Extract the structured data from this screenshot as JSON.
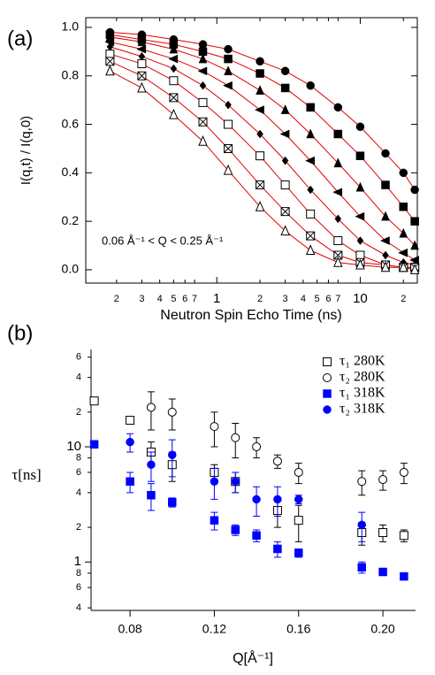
{
  "chart_data": [
    {
      "type": "line",
      "label": "(a)",
      "xlabel": "Neutron Spin Echo Time (ns)",
      "ylabel": "I(q,t) / I(q,0)",
      "annotation": "0.06 Å⁻¹ < Q < 0.25 Å⁻¹",
      "xscale": "log",
      "box": true,
      "xlim": [
        0.122,
        25
      ],
      "ylim": [
        -0.055,
        1.04
      ],
      "xticks": [
        {
          "value": 0.2,
          "label": "2"
        },
        {
          "value": 0.3,
          "label": "3"
        },
        {
          "value": 0.4,
          "label": "4"
        },
        {
          "value": 0.5,
          "label": "5"
        },
        {
          "value": 0.6,
          "label": "6"
        },
        {
          "value": 0.7,
          "label": "7"
        },
        1,
        {
          "value": 2,
          "label": "2"
        },
        {
          "value": 3,
          "label": "3"
        },
        {
          "value": 4,
          "label": "4"
        },
        {
          "value": 5,
          "label": "5"
        },
        {
          "value": 6,
          "label": "6"
        },
        {
          "value": 7,
          "label": "7"
        },
        10,
        {
          "value": 20,
          "label": "2"
        }
      ],
      "yticks": [
        {
          "value": 0,
          "label": "0.0"
        },
        0.2,
        0.4,
        0.6,
        0.8,
        {
          "value": 1,
          "label": "1.0"
        }
      ],
      "x": [
        0.18,
        0.3,
        0.5,
        0.8,
        1.2,
        2,
        3,
        4.5,
        7,
        10,
        15,
        20,
        24
      ],
      "series": [
        {
          "marker": "circle",
          "color": "#000000",
          "line_color": "#e00000",
          "values": [
            0.98,
            0.97,
            0.95,
            0.93,
            0.91,
            0.86,
            0.82,
            0.76,
            0.67,
            0.59,
            0.48,
            0.4,
            0.33
          ]
        },
        {
          "marker": "square",
          "color": "#000000",
          "line_color": "#e00000",
          "values": [
            0.97,
            0.95,
            0.93,
            0.9,
            0.87,
            0.81,
            0.75,
            0.67,
            0.56,
            0.47,
            0.35,
            0.26,
            0.2
          ]
        },
        {
          "marker": "triangle",
          "color": "#000000",
          "line_color": "#e00000",
          "values": [
            0.96,
            0.94,
            0.91,
            0.87,
            0.82,
            0.74,
            0.66,
            0.56,
            0.44,
            0.34,
            0.22,
            0.15,
            0.1
          ]
        },
        {
          "marker": "triangle-left",
          "color": "#000000",
          "line_color": "#e00000",
          "values": [
            0.94,
            0.91,
            0.87,
            0.82,
            0.76,
            0.66,
            0.56,
            0.45,
            0.32,
            0.22,
            0.12,
            0.07,
            0.04
          ]
        },
        {
          "marker": "diamond",
          "color": "#000000",
          "line_color": "#e00000",
          "values": [
            0.92,
            0.88,
            0.83,
            0.76,
            0.68,
            0.56,
            0.45,
            0.33,
            0.21,
            0.12,
            0.06,
            0.03,
            0.02
          ]
        },
        {
          "marker": "square-open",
          "color": "#000000",
          "line_color": "#e00000",
          "values": [
            0.89,
            0.85,
            0.78,
            0.69,
            0.6,
            0.47,
            0.35,
            0.23,
            0.12,
            0.06,
            0.02,
            0.01,
            0.01
          ]
        },
        {
          "marker": "cross",
          "color": "#000000",
          "line_color": "#e00000",
          "values": [
            0.86,
            0.8,
            0.71,
            0.61,
            0.5,
            0.35,
            0.24,
            0.14,
            0.06,
            0.03,
            0.02,
            0.01,
            0.01
          ]
        },
        {
          "marker": "triangle-open",
          "color": "#000000",
          "line_color": "#e00000",
          "values": [
            0.82,
            0.75,
            0.64,
            0.53,
            0.41,
            0.26,
            0.16,
            0.08,
            0.03,
            0.02,
            0.01,
            0.01,
            0
          ]
        }
      ]
    },
    {
      "type": "scatter",
      "label": "(b)",
      "xlabel": "Q[Å⁻¹]",
      "ylabel": "τ[ns]",
      "yscale": "log",
      "box": false,
      "legend": "upper right",
      "xlim": [
        0.0615,
        0.2155
      ],
      "ylim": [
        0.38,
        70
      ],
      "xticks": [
        0.08,
        0.12,
        0.16,
        {
          "value": 0.2,
          "label": "0.20"
        }
      ],
      "yticks": [
        {
          "value": 0.4,
          "label": "4"
        },
        {
          "value": 0.6,
          "label": "6"
        },
        {
          "value": 0.8,
          "label": "8"
        },
        1,
        {
          "value": 2,
          "label": "2"
        },
        {
          "value": 4,
          "label": "4"
        },
        {
          "value": 6,
          "label": "6"
        },
        {
          "value": 8,
          "label": "8"
        },
        10,
        {
          "value": 20,
          "label": "2"
        },
        {
          "value": 40,
          "label": "4"
        },
        {
          "value": 60,
          "label": "6"
        }
      ],
      "series": [
        {
          "name": "τ₁  280K",
          "marker": "square-open",
          "color": "#000000",
          "x": [
            0.063,
            0.08,
            0.09,
            0.1,
            0.12,
            0.13,
            0.15,
            0.16,
            0.19,
            0.2,
            0.21
          ],
          "values": [
            25,
            17,
            9,
            7,
            6,
            5,
            2.8,
            2.3,
            1.8,
            1.8,
            1.7
          ],
          "errors": [
            null,
            null,
            2,
            2,
            1,
            1,
            0.8,
            0.8,
            0.4,
            0.3,
            0.2
          ]
        },
        {
          "name": "τ₂  280K",
          "marker": "circle-open",
          "color": "#000000",
          "x": [
            0.09,
            0.1,
            0.12,
            0.13,
            0.14,
            0.15,
            0.16,
            0.19,
            0.2,
            0.21
          ],
          "values": [
            22,
            20,
            15,
            12,
            10,
            7.5,
            6,
            5,
            5.2,
            6
          ],
          "errors": [
            8,
            6,
            5,
            4,
            2,
            1,
            1.2,
            1.2,
            1,
            1.2
          ]
        },
        {
          "name": "τ₁  318K",
          "marker": "square",
          "color": "#0000ff",
          "x": [
            0.063,
            0.08,
            0.09,
            0.1,
            0.12,
            0.13,
            0.14,
            0.15,
            0.16,
            0.19,
            0.2,
            0.21
          ],
          "values": [
            10.5,
            5,
            3.8,
            3.3,
            2.3,
            1.9,
            1.7,
            1.3,
            1.2,
            0.9,
            0.82,
            0.75
          ],
          "errors": [
            null,
            1,
            1,
            0.3,
            0.4,
            0.2,
            0.2,
            0.2,
            0.1,
            0.1,
            null,
            null
          ]
        },
        {
          "name": "τ₂  318K",
          "marker": "circle",
          "color": "#0000ff",
          "x": [
            0.08,
            0.09,
            0.1,
            0.12,
            0.13,
            0.14,
            0.15,
            0.16,
            0.19
          ],
          "values": [
            11,
            7,
            8.5,
            5,
            5,
            3.5,
            3.5,
            3.5,
            2.1
          ],
          "errors": [
            2,
            2,
            3,
            1.5,
            1,
            1,
            1,
            0.3,
            0.6
          ]
        }
      ]
    }
  ]
}
